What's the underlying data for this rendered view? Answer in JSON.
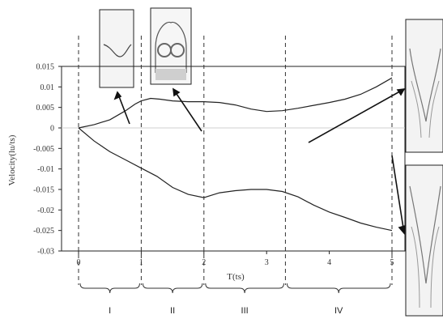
{
  "chart_data": {
    "type": "line",
    "xlabel": "T(ts)",
    "ylabel": "Velocity(lu/ts)",
    "xlim": [
      0,
      5
    ],
    "ylim": [
      -0.03,
      0.015
    ],
    "x_ticks": [
      "0",
      "1",
      "2",
      "3",
      "4",
      "5"
    ],
    "y_ticks": [
      "0.015",
      "0.01",
      "0.005",
      "0",
      "-0.005",
      "-0.01",
      "-0.015",
      "-0.02",
      "-0.025",
      "-0.03"
    ],
    "series": [
      {
        "x": [
          0,
          0.25,
          0.5,
          0.75,
          0.9,
          1.0,
          1.15,
          1.3,
          1.5,
          1.75,
          2.0,
          2.25,
          2.5,
          2.75,
          3.0,
          3.25,
          3.5,
          3.75,
          4.0,
          4.25,
          4.5,
          4.75,
          5.0
        ],
        "values": [
          0,
          0.0008,
          0.002,
          0.0042,
          0.0058,
          0.0066,
          0.0072,
          0.007,
          0.0066,
          0.0064,
          0.0064,
          0.0062,
          0.0056,
          0.0046,
          0.004,
          0.0042,
          0.0048,
          0.0055,
          0.0062,
          0.007,
          0.0082,
          0.01,
          0.0122
        ]
      },
      {
        "x": [
          0,
          0.25,
          0.5,
          0.75,
          1.0,
          1.25,
          1.5,
          1.75,
          2.0,
          2.25,
          2.5,
          2.75,
          3.0,
          3.25,
          3.5,
          3.75,
          4.0,
          4.25,
          4.5,
          4.75,
          5.0
        ],
        "values": [
          0,
          -0.0032,
          -0.0058,
          -0.0078,
          -0.0098,
          -0.0118,
          -0.0145,
          -0.0162,
          -0.017,
          -0.0158,
          -0.0153,
          -0.015,
          -0.015,
          -0.0155,
          -0.0168,
          -0.0188,
          -0.0205,
          -0.0218,
          -0.0232,
          -0.0242,
          -0.025
        ]
      }
    ],
    "phase_boundaries": [
      0,
      1,
      2,
      3.3,
      5
    ],
    "phases": [
      "I",
      "II",
      "III",
      "IV"
    ]
  }
}
